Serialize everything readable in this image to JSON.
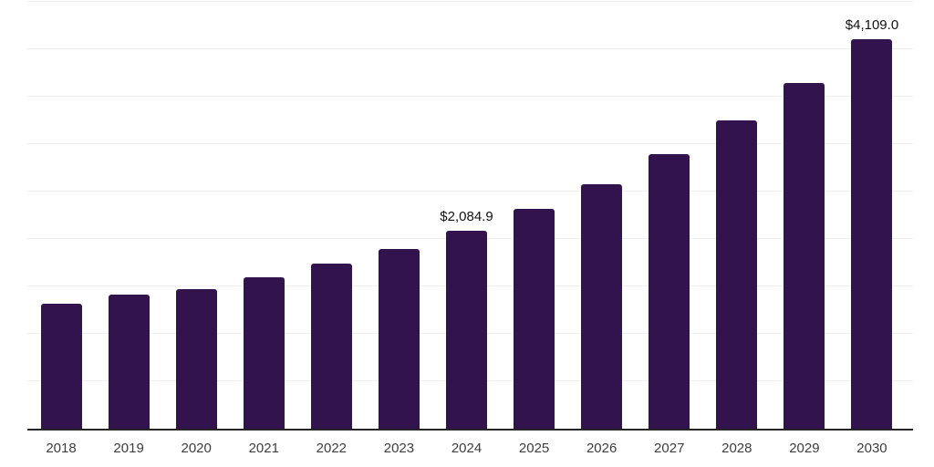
{
  "chart_data": {
    "type": "bar",
    "title": "",
    "xlabel": "",
    "ylabel": "",
    "categories": [
      "2018",
      "2019",
      "2020",
      "2021",
      "2022",
      "2023",
      "2024",
      "2025",
      "2026",
      "2027",
      "2028",
      "2029",
      "2030"
    ],
    "values": [
      1315,
      1413,
      1471,
      1600,
      1745,
      1894,
      2084.9,
      2317,
      2577,
      2894,
      3250,
      3644,
      4109
    ],
    "point_labels": [
      null,
      null,
      null,
      null,
      null,
      null,
      "$2,084.9",
      null,
      null,
      null,
      null,
      null,
      "$4,109.0"
    ],
    "ylim": [
      0,
      4500
    ],
    "gridline_step": 500,
    "grid": "horizontal only, no y-axis tick labels",
    "legend": "none",
    "colors": {
      "bar": "#32134d",
      "gridline": "#f1f1f1",
      "axis_line": "#262626",
      "x_tick_label": "#3d3d3d",
      "value_label": "#111111",
      "background": "#ffffff"
    }
  }
}
